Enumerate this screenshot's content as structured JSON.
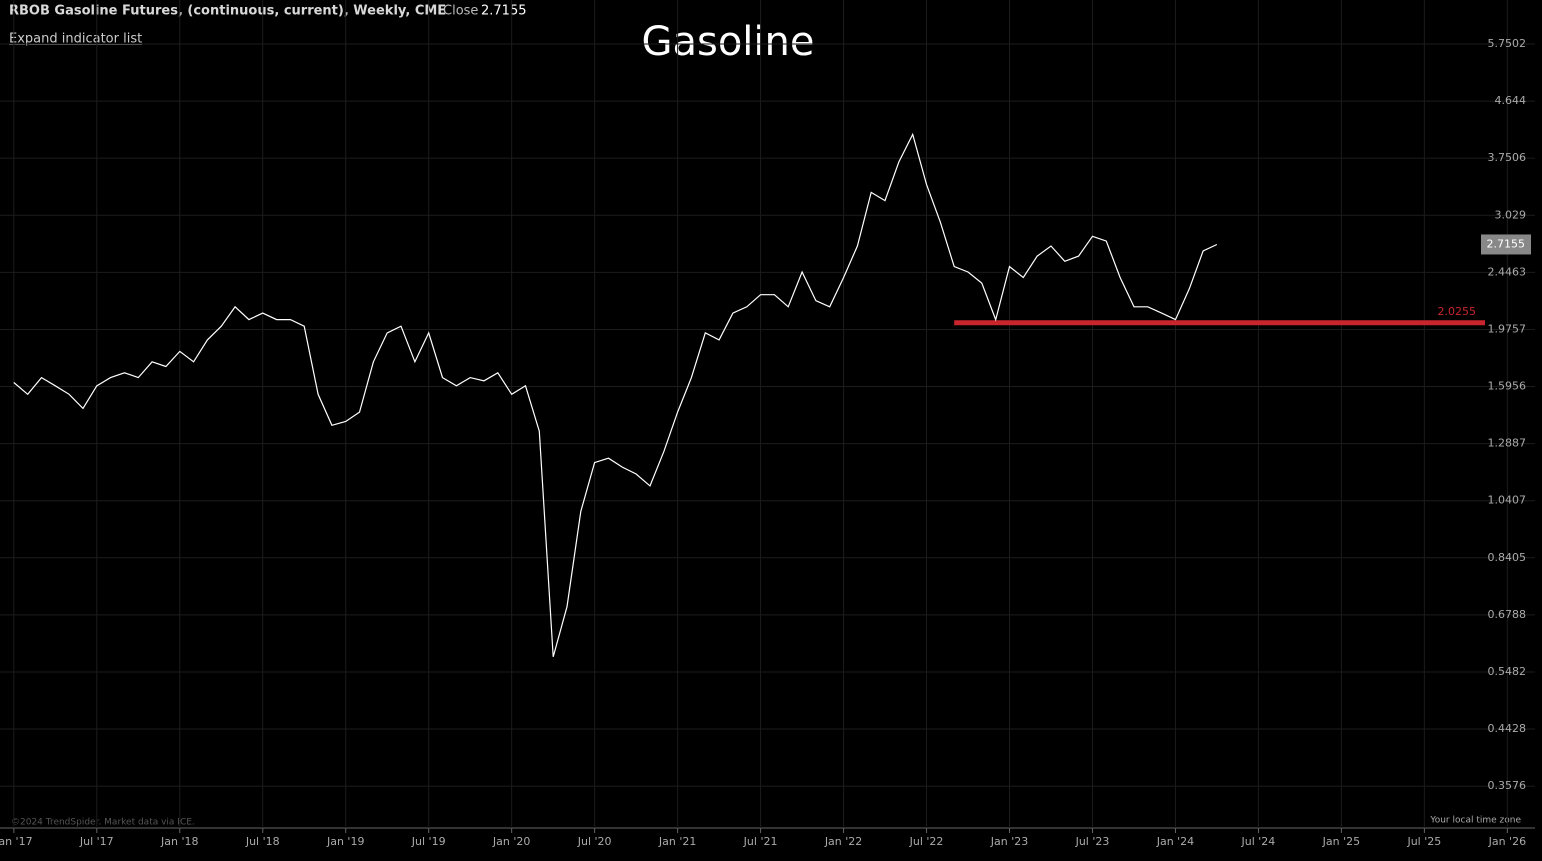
{
  "header": {
    "instrument": "RBOB Gasoline Futures, (continuous, current), Weekly, CME",
    "close_label": "Close",
    "close": 2.7155,
    "expand": "Expand indicator list",
    "copyright": "©2024 TrendSpider. Market data via ICE.",
    "timezone": "Your local time zone"
  },
  "chart_data": {
    "type": "line",
    "title": "Gasoline",
    "color": "#ffffff",
    "log_scale": true,
    "grid": true,
    "x": [
      "2017-01",
      "2017-02",
      "2017-03",
      "2017-04",
      "2017-05",
      "2017-06",
      "2017-07",
      "2017-08",
      "2017-09",
      "2017-10",
      "2017-11",
      "2017-12",
      "2018-01",
      "2018-02",
      "2018-03",
      "2018-04",
      "2018-05",
      "2018-06",
      "2018-07",
      "2018-08",
      "2018-09",
      "2018-10",
      "2018-11",
      "2018-12",
      "2019-01",
      "2019-02",
      "2019-03",
      "2019-04",
      "2019-05",
      "2019-06",
      "2019-07",
      "2019-08",
      "2019-09",
      "2019-10",
      "2019-11",
      "2019-12",
      "2020-01",
      "2020-02",
      "2020-03",
      "2020-04",
      "2020-05",
      "2020-06",
      "2020-07",
      "2020-08",
      "2020-09",
      "2020-10",
      "2020-11",
      "2020-12",
      "2021-01",
      "2021-02",
      "2021-03",
      "2021-04",
      "2021-05",
      "2021-06",
      "2021-07",
      "2021-08",
      "2021-09",
      "2021-10",
      "2021-11",
      "2021-12",
      "2022-01",
      "2022-02",
      "2022-03",
      "2022-04",
      "2022-05",
      "2022-06",
      "2022-07",
      "2022-08",
      "2022-09",
      "2022-10",
      "2022-11",
      "2022-12",
      "2023-01",
      "2023-02",
      "2023-03",
      "2023-04",
      "2023-05",
      "2023-06",
      "2023-07",
      "2023-08",
      "2023-09",
      "2023-10",
      "2023-11",
      "2023-12",
      "2024-01",
      "2024-02",
      "2024-03",
      "2024-04"
    ],
    "values": [
      1.62,
      1.55,
      1.65,
      1.6,
      1.55,
      1.47,
      1.6,
      1.65,
      1.68,
      1.65,
      1.75,
      1.72,
      1.82,
      1.75,
      1.9,
      2.0,
      2.15,
      2.05,
      2.1,
      2.05,
      2.05,
      2.0,
      1.55,
      1.38,
      1.4,
      1.45,
      1.75,
      1.95,
      2.0,
      1.75,
      1.95,
      1.65,
      1.6,
      1.65,
      1.63,
      1.68,
      1.55,
      1.6,
      1.35,
      0.58,
      0.7,
      1.0,
      1.2,
      1.22,
      1.18,
      1.15,
      1.1,
      1.25,
      1.45,
      1.65,
      1.95,
      1.9,
      2.1,
      2.15,
      2.25,
      2.25,
      2.15,
      2.45,
      2.2,
      2.15,
      2.4,
      2.7,
      3.3,
      3.2,
      3.7,
      4.1,
      3.4,
      2.95,
      2.5,
      2.45,
      2.35,
      2.05,
      2.5,
      2.4,
      2.6,
      2.7,
      2.55,
      2.6,
      2.8,
      2.75,
      2.4,
      2.15,
      2.15,
      2.1,
      2.05,
      2.3,
      2.65,
      2.7155
    ],
    "value_labels": [],
    "xlim": [
      "2016-12",
      "2026-03"
    ],
    "xticks": [
      {
        "value": "2017-01",
        "label": "Jan '17"
      },
      {
        "value": "2017-07",
        "label": "Jul '17"
      },
      {
        "value": "2018-01",
        "label": "Jan '18"
      },
      {
        "value": "2018-07",
        "label": "Jul '18"
      },
      {
        "value": "2019-01",
        "label": "Jan '19"
      },
      {
        "value": "2019-07",
        "label": "Jul '19"
      },
      {
        "value": "2020-01",
        "label": "Jan '20"
      },
      {
        "value": "2020-07",
        "label": "Jul '20"
      },
      {
        "value": "2021-01",
        "label": "Jan '21"
      },
      {
        "value": "2021-07",
        "label": "Jul '21"
      },
      {
        "value": "2022-01",
        "label": "Jan '22"
      },
      {
        "value": "2022-07",
        "label": "Jul '22"
      },
      {
        "value": "2023-01",
        "label": "Jan '23"
      },
      {
        "value": "2023-07",
        "label": "Jul '23"
      },
      {
        "value": "2024-01",
        "label": "Jan '24"
      },
      {
        "value": "2024-07",
        "label": "Jul '24"
      },
      {
        "value": "2025-01",
        "label": "Jan '25"
      },
      {
        "value": "2025-07",
        "label": "Jul '25"
      },
      {
        "value": "2026-01",
        "label": "Jan '26"
      }
    ],
    "ylim": [
      0.3057,
      6.78
    ],
    "yticks": [
      5.7502,
      4.644,
      3.7506,
      3.029,
      2.4463,
      1.9757,
      1.5956,
      1.2887,
      1.0407,
      0.8405,
      0.6788,
      0.5482,
      0.4428,
      0.3576
    ],
    "hline": {
      "value": 2.0255,
      "start": "2022-09",
      "color": "#c8262c"
    }
  }
}
